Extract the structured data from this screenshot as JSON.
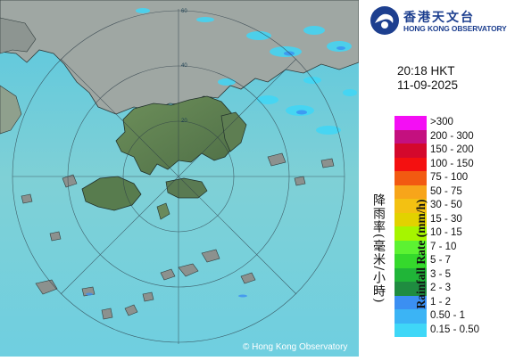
{
  "header": {
    "org_name_cn": "香港天文台",
    "org_name_en": "HONG KONG OBSERVATORY",
    "time": "20:18 HKT",
    "date": "11-09-2025"
  },
  "map": {
    "copyright": "© Hong Kong Observatory",
    "range_ring_labels": [
      "20",
      "40",
      "60"
    ]
  },
  "legend": {
    "axis_label_cn": "降雨率(毫米/小時)",
    "axis_label_en": "Rainfall Rate (mm/h)",
    "levels": [
      {
        "label": ">300",
        "color": "#f40ef4"
      },
      {
        "label": "200 - 300",
        "color": "#c4107f"
      },
      {
        "label": "150 - 200",
        "color": "#d4082c"
      },
      {
        "label": "100 - 150",
        "color": "#f41010"
      },
      {
        "label": "75 - 100",
        "color": "#f25a11"
      },
      {
        "label": "50 - 75",
        "color": "#f7a51a"
      },
      {
        "label": "30 - 50",
        "color": "#f3c112"
      },
      {
        "label": "15 - 30",
        "color": "#e2d200"
      },
      {
        "label": "10 - 15",
        "color": "#a6f500"
      },
      {
        "label": "7 - 10",
        "color": "#5cf232"
      },
      {
        "label": "5 - 7",
        "color": "#35d92c"
      },
      {
        "label": "3 - 5",
        "color": "#20b538"
      },
      {
        "label": "2 - 3",
        "color": "#1f8c40"
      },
      {
        "label": "1 - 2",
        "color": "#3b8ff2"
      },
      {
        "label": "0.50 - 1",
        "color": "#3bb4f5"
      },
      {
        "label": "0.15 - 0.50",
        "color": "#3fd7f7"
      }
    ]
  }
}
